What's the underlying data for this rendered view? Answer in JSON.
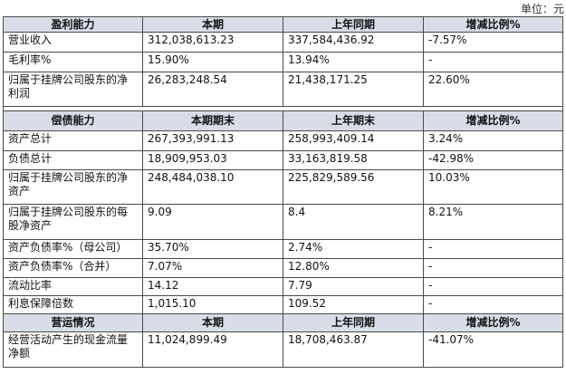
{
  "unit_label": "单位：元",
  "sections": [
    {
      "headers": [
        "盈利能力",
        "本期",
        "上年同期",
        "增减比例%"
      ],
      "rows": [
        [
          "营业收入",
          "312,038,613.23",
          "337,584,436.92",
          "-7.57%"
        ],
        [
          "毛利率%",
          "15.90%",
          "13.94%",
          "-"
        ],
        [
          "归属于挂牌公司股东的净利润",
          "26,283,248.54",
          "21,438,171.25",
          "22.60%"
        ]
      ]
    },
    {
      "headers": [
        "偿债能力",
        "本期期末",
        "上年期末",
        "增减比例%"
      ],
      "rows": [
        [
          "资产总计",
          "267,393,991.13",
          "258,993,409.14",
          "3.24%"
        ],
        [
          "负债总计",
          "18,909,953.03",
          "33,163,819.58",
          "-42.98%"
        ],
        [
          "归属于挂牌公司股东的净资产",
          "248,484,038.10",
          "225,829,589.56",
          "10.03%"
        ],
        [
          "归属于挂牌公司股东的每股净资产",
          "9.09",
          "8.4",
          "8.21%"
        ],
        [
          "资产负债率%（母公司）",
          "35.70%",
          "2.74%",
          "-"
        ],
        [
          "资产负债率%（合并）",
          "7.07%",
          "12.80%",
          "-"
        ],
        [
          "流动比率",
          "14.12",
          "7.79",
          "-"
        ],
        [
          "利息保障倍数",
          "1,015.10",
          "109.52",
          "-"
        ]
      ]
    },
    {
      "headers": [
        "营运情况",
        "本期",
        "上年同期",
        "增减比例%"
      ],
      "rows": [
        [
          "经营活动产生的现金流量净额",
          "11,024,899.49",
          "18,708,463.87",
          "-41.07%"
        ]
      ]
    }
  ]
}
